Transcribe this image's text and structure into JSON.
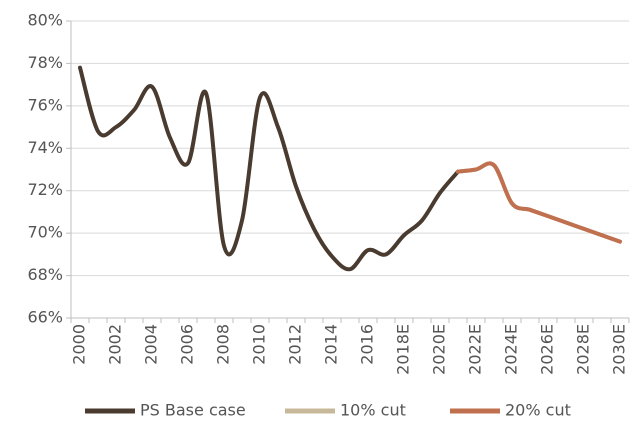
{
  "chart_data": {
    "type": "line",
    "categories": [
      "2000",
      null,
      "2002",
      null,
      "2004",
      null,
      "2006",
      null,
      "2008",
      null,
      "2010",
      null,
      "2012",
      null,
      "2014",
      null,
      "2016",
      null,
      "2018E",
      null,
      "2020E",
      null,
      "2022E",
      null,
      "2024E",
      null,
      "2026E",
      null,
      "2028E",
      null,
      "2030E"
    ],
    "series": [
      {
        "name": "PS Base case",
        "color": "#4a3b30",
        "values": [
          77.8,
          74.8,
          75.0,
          75.8,
          76.9,
          74.5,
          73.3,
          76.6,
          69.4,
          70.6,
          76.4,
          75.0,
          72.2,
          70.2,
          68.9,
          68.3,
          69.2,
          69.0,
          69.9,
          70.6,
          71.9,
          72.9,
          null,
          null,
          null,
          null,
          null,
          null,
          null,
          null,
          null
        ]
      },
      {
        "name": "10% cut",
        "color": "#c8b89a",
        "values": [
          null,
          null,
          null,
          null,
          null,
          null,
          null,
          null,
          null,
          null,
          null,
          null,
          null,
          null,
          null,
          null,
          null,
          null,
          null,
          null,
          null,
          72.9,
          73.0,
          73.2,
          71.4,
          71.1,
          70.8,
          70.5,
          70.2,
          69.9,
          69.6
        ]
      },
      {
        "name": "20% cut",
        "color": "#c0704e",
        "values": [
          null,
          null,
          null,
          null,
          null,
          null,
          null,
          null,
          null,
          null,
          null,
          null,
          null,
          null,
          null,
          null,
          null,
          null,
          null,
          null,
          null,
          72.9,
          73.0,
          73.2,
          71.4,
          71.1,
          70.8,
          70.5,
          70.2,
          69.9,
          69.6
        ]
      }
    ],
    "ylim": [
      66,
      80
    ],
    "yticks": [
      {
        "value": 66,
        "label": "66%"
      },
      {
        "value": 68,
        "label": "68%"
      },
      {
        "value": 70,
        "label": "70%"
      },
      {
        "value": 72,
        "label": "72%"
      },
      {
        "value": 74,
        "label": "74%"
      },
      {
        "value": 76,
        "label": "76%"
      },
      {
        "value": 78,
        "label": "78%"
      },
      {
        "value": 80,
        "label": "80%"
      }
    ],
    "grid": true,
    "legend": "bottom"
  }
}
